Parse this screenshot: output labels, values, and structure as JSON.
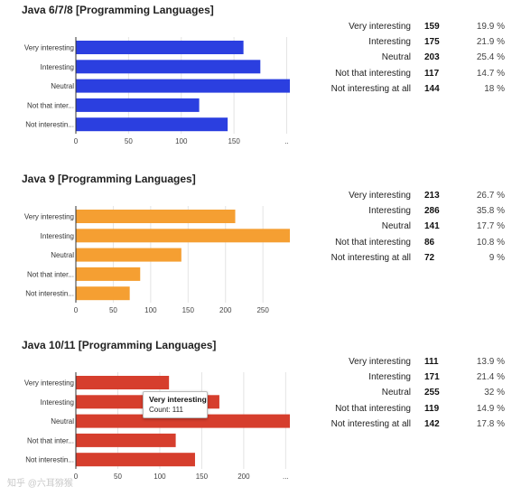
{
  "chart_data": [
    {
      "type": "bar",
      "orientation": "horizontal",
      "title": "Java 6/7/8 [Programming Languages]",
      "color": "#2b3fe0",
      "categories": [
        "Very interesting",
        "Interesting",
        "Neutral",
        "Not that inter...",
        "Not interestin..."
      ],
      "values": [
        159,
        175,
        203,
        117,
        144
      ],
      "xticks": [
        "0",
        "50",
        "100",
        "150",
        ".."
      ],
      "xlim": [
        0,
        203
      ],
      "table": [
        {
          "label": "Very interesting",
          "count": "159",
          "pct": "19.9 %"
        },
        {
          "label": "Interesting",
          "count": "175",
          "pct": "21.9 %"
        },
        {
          "label": "Neutral",
          "count": "203",
          "pct": "25.4 %"
        },
        {
          "label": "Not that interesting",
          "count": "117",
          "pct": "14.7 %"
        },
        {
          "label": "Not interesting at all",
          "count": "144",
          "pct": "18 %"
        }
      ]
    },
    {
      "type": "bar",
      "orientation": "horizontal",
      "title": "Java 9 [Programming Languages]",
      "color": "#f59f32",
      "categories": [
        "Very interesting",
        "Interesting",
        "Neutral",
        "Not that inter...",
        "Not interestin..."
      ],
      "values": [
        213,
        286,
        141,
        86,
        72
      ],
      "xticks": [
        "0",
        "50",
        "100",
        "150",
        "200",
        "250"
      ],
      "xlim": [
        0,
        286
      ],
      "table": [
        {
          "label": "Very interesting",
          "count": "213",
          "pct": "26.7 %"
        },
        {
          "label": "Interesting",
          "count": "286",
          "pct": "35.8 %"
        },
        {
          "label": "Neutral",
          "count": "141",
          "pct": "17.7 %"
        },
        {
          "label": "Not that interesting",
          "count": "86",
          "pct": "10.8 %"
        },
        {
          "label": "Not interesting at all",
          "count": "72",
          "pct": "9 %"
        }
      ]
    },
    {
      "type": "bar",
      "orientation": "horizontal",
      "title": "Java 10/11 [Programming Languages]",
      "color": "#d63e2d",
      "categories": [
        "Very interesting",
        "Interesting",
        "Neutral",
        "Not that inter...",
        "Not interestin..."
      ],
      "values": [
        111,
        171,
        255,
        119,
        142
      ],
      "xticks": [
        "0",
        "50",
        "100",
        "150",
        "200",
        "..."
      ],
      "xlim": [
        0,
        255
      ],
      "table": [
        {
          "label": "Very interesting",
          "count": "111",
          "pct": "13.9 %"
        },
        {
          "label": "Interesting",
          "count": "171",
          "pct": "21.4 %"
        },
        {
          "label": "Neutral",
          "count": "255",
          "pct": "32 %"
        },
        {
          "label": "Not that interesting",
          "count": "119",
          "pct": "14.9 %"
        },
        {
          "label": "Not interesting at all",
          "count": "142",
          "pct": "17.8 %"
        }
      ],
      "tooltip": {
        "title": "Very interesting",
        "text": "Count: 111"
      }
    }
  ],
  "watermark": "知乎 @六耳猕猴"
}
